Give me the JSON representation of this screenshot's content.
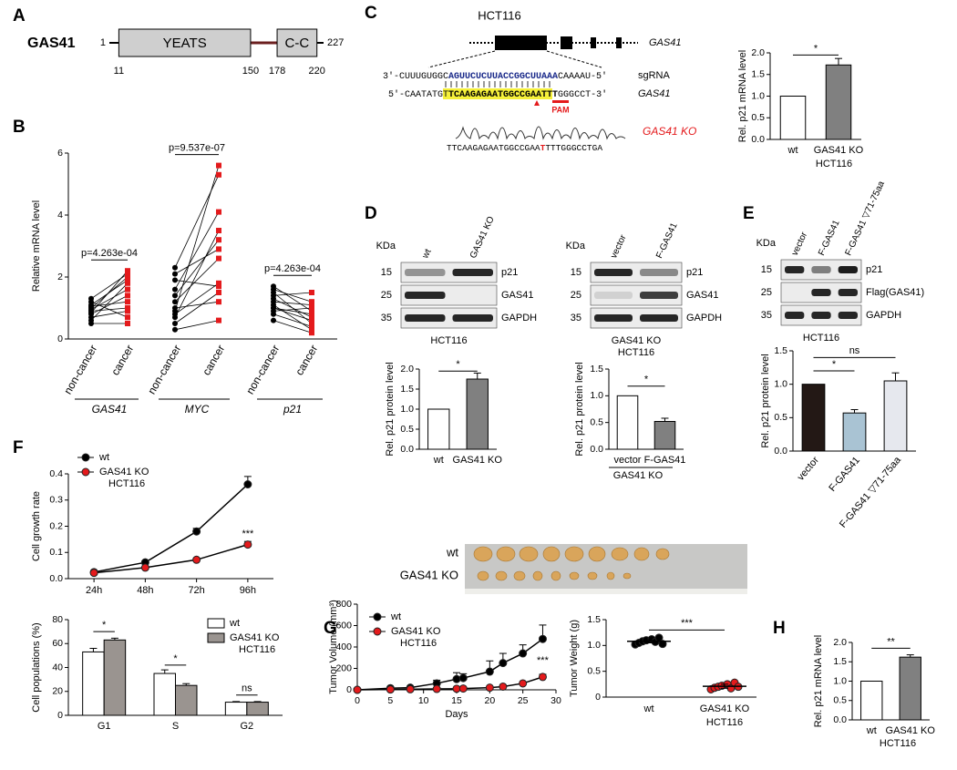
{
  "panel_labels": [
    "A",
    "B",
    "C",
    "D",
    "E",
    "F",
    "G",
    "H"
  ],
  "domain_diagram": {
    "protein": "GAS41",
    "start": 1,
    "end": 227,
    "domains": [
      "YEATS",
      "C-C"
    ],
    "positions": [
      11,
      150,
      178,
      220
    ]
  },
  "crispr": {
    "title": "HCT116",
    "gene": "GAS41",
    "sgrna_seq": [
      "3′-CUUUGUGGC",
      "AGUUCUCUUACCGGCUUAAA",
      "CAAAAU-5′"
    ],
    "sgrna_label": "sgRNA",
    "genomic_seq": [
      "5′-CAATATGT",
      "TCAAGAGAATGGCCGAATTT",
      "GGG",
      "CCT-3′"
    ],
    "genomic_label": "GAS41",
    "pam": "PAM",
    "ko_label": "GAS41 KO",
    "ko_seq": [
      "TTCAAGAGAATGGCCGAA",
      "T",
      "TTTGGGCCTGA"
    ]
  },
  "blots": [
    {
      "kda": "KDa",
      "lanes": [
        "wt",
        "GAS41 KO"
      ],
      "markers": [
        "15",
        "25",
        "35"
      ],
      "bands": [
        "p21",
        "GAS41",
        "GAPDH"
      ],
      "caption": [
        "HCT116"
      ]
    },
    {
      "kda": "KDa",
      "lanes": [
        "vector",
        "F-GAS41"
      ],
      "markers": [
        "15",
        "25",
        "35"
      ],
      "bands": [
        "p21",
        "GAS41",
        "GAPDH"
      ],
      "caption": [
        "GAS41 KO",
        "HCT116"
      ]
    },
    {
      "kda": "KDa",
      "lanes": [
        "vector",
        "F-GAS41",
        "F-GAS41 ▽71-75aa"
      ],
      "markers": [
        "15",
        "25",
        "35"
      ],
      "bands": [
        "p21",
        "Flag(GAS41)",
        "GAPDH"
      ],
      "caption": [
        "HCT116"
      ]
    }
  ],
  "xenograft_photo": {
    "rows": [
      "wt",
      "GAS41 KO"
    ]
  },
  "chart_data": [
    {
      "type": "paired",
      "ylabel": "Relative mRNA level",
      "ylim": [
        0,
        6
      ],
      "yticks": [
        0,
        2,
        4,
        6
      ],
      "colors": [
        "#000000",
        "#e41a1c"
      ],
      "groups": [
        {
          "name": "GAS41",
          "categories": [
            "non-cancer",
            "cancer"
          ],
          "p_value": "p=4.263e-04",
          "before": [
            0.5,
            0.6,
            0.7,
            0.8,
            0.85,
            0.9,
            0.95,
            1.0,
            1.05,
            1.1,
            1.2,
            1.3
          ],
          "after": [
            0.5,
            1.8,
            0.9,
            1.4,
            2.2,
            1.0,
            1.6,
            2.0,
            1.2,
            1.9,
            0.7,
            2.1
          ]
        },
        {
          "name": "MYC",
          "categories": [
            "non-cancer",
            "cancer"
          ],
          "p_value": "p=9.537e-07",
          "before": [
            0.3,
            0.5,
            0.7,
            0.8,
            0.9,
            1.0,
            1.2,
            1.4,
            1.6,
            1.9,
            2.1,
            2.3
          ],
          "after": [
            0.6,
            1.5,
            3.5,
            1.8,
            5.6,
            1.2,
            2.6,
            3.2,
            4.1,
            1.7,
            2.9,
            5.3
          ]
        },
        {
          "name": "p21",
          "categories": [
            "non-cancer",
            "cancer"
          ],
          "p_value": "p=4.263e-04",
          "before": [
            0.6,
            0.8,
            0.9,
            1.0,
            1.0,
            1.1,
            1.2,
            1.3,
            1.4,
            1.5,
            1.6,
            1.7
          ],
          "after": [
            0.2,
            0.4,
            1.0,
            0.6,
            0.8,
            0.3,
            1.1,
            0.7,
            1.5,
            0.5,
            1.2,
            0.9
          ]
        }
      ]
    },
    {
      "type": "bar",
      "ylabel": "Rel. p21 mRNA level",
      "categories": [
        "wt",
        "GAS41 KO"
      ],
      "values": [
        1,
        1.72
      ],
      "errors": [
        null,
        0.15
      ],
      "colors": [
        "#ffffff",
        "#808080"
      ],
      "xlabel": "HCT116",
      "annotations": [
        "*"
      ],
      "ylim": [
        0,
        2
      ],
      "yticks": [
        {
          "value": 0,
          "label": "0.0"
        },
        0.5,
        {
          "value": 1,
          "label": "1.0"
        },
        1.5,
        {
          "value": 2,
          "label": "2.0"
        }
      ]
    },
    {
      "type": "bar",
      "ylabel": "Rel. p21 protein level",
      "categories": [
        "wt",
        "GAS41 KO"
      ],
      "values": [
        1,
        1.75
      ],
      "errors": [
        null,
        0.15
      ],
      "colors": [
        "#ffffff",
        "#808080"
      ],
      "annotations": [
        "*"
      ],
      "ylim": [
        0,
        2
      ],
      "yticks": [
        {
          "value": 0,
          "label": "0.0"
        },
        0.5,
        {
          "value": 1,
          "label": "1.0"
        },
        1.5,
        {
          "value": 2,
          "label": "2.0"
        }
      ]
    },
    {
      "type": "bar",
      "ylabel": "Rel. p21 protein level",
      "categories": [
        "vector",
        "F-GAS41"
      ],
      "values": [
        1,
        0.52
      ],
      "errors": [
        null,
        0.06
      ],
      "colors": [
        "#ffffff",
        "#808080"
      ],
      "xlabel": "GAS41 KO",
      "annotations": [
        "*"
      ],
      "ylim": [
        0,
        1.5
      ],
      "yticks": [
        {
          "value": 0,
          "label": "0.0"
        },
        0.5,
        {
          "value": 1,
          "label": "1.0"
        },
        1.5
      ]
    },
    {
      "type": "bar",
      "ylabel": "Rel. p21 protein level",
      "categories": [
        "vector",
        "F-GAS41",
        "F-GAS41 ▽71-75aa"
      ],
      "values": [
        1,
        0.57,
        1.05
      ],
      "errors": [
        null,
        0.05,
        0.12
      ],
      "colors": [
        "#231815",
        "#a9c3d3",
        "#e6e8ee"
      ],
      "annotations": [
        "*",
        "ns"
      ],
      "ylim": [
        0,
        1.5
      ],
      "yticks": [
        {
          "value": 0,
          "label": "0.0"
        },
        0.5,
        {
          "value": 1,
          "label": "1.0"
        },
        1.5
      ]
    },
    {
      "type": "line",
      "ylabel": "Cell growth rate",
      "categories": [
        "24h",
        "48h",
        "72h",
        "96h"
      ],
      "legend_note": "HCT116",
      "annotations": [
        "***"
      ],
      "ylim": [
        0,
        0.4
      ],
      "yticks": [
        {
          "value": 0,
          "label": "0.0"
        },
        0.1,
        0.2,
        0.3,
        0.4
      ],
      "series": [
        {
          "name": "wt",
          "color": "#000000",
          "values": [
            0.025,
            0.062,
            0.18,
            0.36
          ],
          "errors": [
            0.003,
            0.005,
            0.012,
            0.03
          ]
        },
        {
          "name": "GAS41 KO",
          "color": "#e41a1c",
          "values": [
            0.022,
            0.042,
            0.072,
            0.13
          ],
          "errors": [
            0.003,
            0.004,
            0.006,
            0.012
          ]
        }
      ]
    },
    {
      "type": "bar",
      "ylabel": "Cell populations (%)",
      "categories": [
        "G1",
        "S",
        "G2"
      ],
      "legend_note": "HCT116",
      "annotations": [
        "*",
        "*",
        "ns"
      ],
      "ylim": [
        0,
        80
      ],
      "yticks": [
        0,
        20,
        40,
        60,
        80
      ],
      "series": [
        {
          "name": "wt",
          "color": "#ffffff",
          "values": [
            53,
            35,
            11
          ],
          "errors": [
            3,
            3,
            0.5
          ]
        },
        {
          "name": "GAS41 KO",
          "color": "#9a9490",
          "values": [
            63,
            25,
            11
          ],
          "errors": [
            1.5,
            1.5,
            0.5
          ]
        }
      ]
    },
    {
      "type": "line",
      "ylabel": "Tumor Volume (mm³)",
      "xlabel": "Days",
      "legend_note": "HCT116",
      "annotations": [
        "***"
      ],
      "x": [
        0,
        5,
        8,
        12,
        15,
        16,
        20,
        22,
        25,
        28
      ],
      "xlim": [
        0,
        30
      ],
      "xticks": [
        0,
        5,
        10,
        15,
        20,
        25,
        30
      ],
      "ylim": [
        0,
        800
      ],
      "yticks": [
        0,
        200,
        400,
        600,
        800
      ],
      "series": [
        {
          "name": "wt",
          "color": "#000000",
          "values": [
            0,
            15,
            20,
            60,
            100,
            110,
            170,
            250,
            340,
            475
          ],
          "errors": [
            0,
            5,
            8,
            30,
            60,
            40,
            100,
            90,
            80,
            130
          ]
        },
        {
          "name": "GAS41 KO",
          "color": "#e41a1c",
          "values": [
            0,
            3,
            5,
            8,
            10,
            12,
            20,
            30,
            60,
            120
          ],
          "errors": [
            0,
            1,
            2,
            3,
            4,
            4,
            6,
            8,
            12,
            25
          ]
        }
      ]
    },
    {
      "type": "strip",
      "ylabel": "Tumor Weight (g)",
      "categories": [
        "wt",
        "GAS41 KO"
      ],
      "xlabel": "HCT116",
      "colors": [
        "#000000",
        "#e41a1c"
      ],
      "annotations": [
        "***"
      ],
      "values": [
        [
          1.02,
          1.05,
          1.08,
          1.1,
          1.12,
          1.07,
          1.15,
          1.03
        ],
        [
          0.15,
          0.18,
          0.2,
          0.22,
          0.25,
          0.17,
          0.28,
          0.2
        ]
      ],
      "means": [
        1.08,
        0.21
      ],
      "errors": [
        0.03,
        0.04
      ],
      "ylim": [
        0,
        1.5
      ],
      "yticks": [
        0,
        0.5,
        {
          "value": 1,
          "label": "1.0"
        },
        1.5
      ]
    },
    {
      "type": "bar",
      "ylabel": "Rel. p21 mRNA level",
      "categories": [
        "wt",
        "GAS41 KO"
      ],
      "values": [
        1,
        1.62
      ],
      "errors": [
        null,
        0.06
      ],
      "colors": [
        "#ffffff",
        "#808080"
      ],
      "xlabel": "HCT116",
      "annotations": [
        "**"
      ],
      "ylim": [
        0,
        2
      ],
      "yticks": [
        {
          "value": 0,
          "label": "0.0"
        },
        0.5,
        {
          "value": 1,
          "label": "1.0"
        },
        1.5,
        {
          "value": 2,
          "label": "2.0"
        }
      ]
    }
  ]
}
